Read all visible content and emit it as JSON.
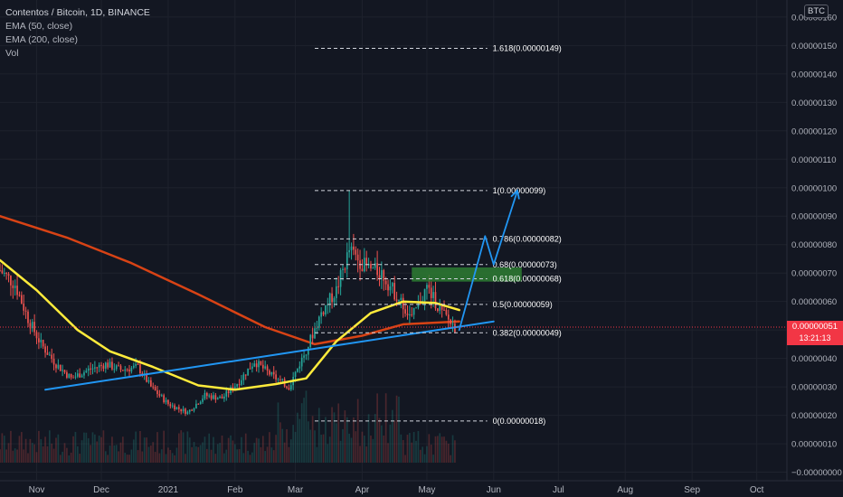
{
  "legend": {
    "symbol": "Contentos / Bitcoin, 1D, BINANCE",
    "ema50": "EMA (50, close)",
    "ema200": "EMA (200, close)",
    "vol": "Vol"
  },
  "axis_badge": "BTC",
  "last_price": {
    "value": "0.00000051",
    "countdown": "13:21:13"
  },
  "chart_data": {
    "type": "candlestick",
    "title": "Contentos / Bitcoin, 1D, BINANCE",
    "x_tick_labels": [
      "Nov",
      "Dec",
      "2021",
      "Feb",
      "Mar",
      "Apr",
      "May",
      "Jun",
      "Jul",
      "Aug",
      "Sep",
      "Oct"
    ],
    "y_tick_labels": [
      "0.00000160",
      "0.00000150",
      "0.00000140",
      "0.00000130",
      "0.00000120",
      "0.00000110",
      "0.00000100",
      "0.00000090",
      "0.00000080",
      "0.00000070",
      "0.00000060",
      "0.00000050",
      "0.00000040",
      "0.00000030",
      "0.00000020",
      "0.00000010",
      "−0.00000000"
    ],
    "y_ticks": [
      1.6e-06,
      1.5e-06,
      1.4e-06,
      1.3e-06,
      1.2e-06,
      1.1e-06,
      1e-06,
      9e-07,
      8e-07,
      7e-07,
      6e-07,
      5e-07,
      4e-07,
      3e-07,
      2e-07,
      1e-07,
      0
    ],
    "x_range": [
      "2020-10-15",
      "2021-10-15"
    ],
    "y_range": [
      -3e-08,
      1.66e-06
    ],
    "price_path": [
      [
        "2020-10-15",
        7.1e-07
      ],
      [
        "2020-10-22",
        6.6e-07
      ],
      [
        "2020-10-28",
        5.4e-07
      ],
      [
        "2020-11-03",
        4.5e-07
      ],
      [
        "2020-11-10",
        3.8e-07
      ],
      [
        "2020-11-17",
        3.3e-07
      ],
      [
        "2020-11-25",
        3.6e-07
      ],
      [
        "2020-12-03",
        3.8e-07
      ],
      [
        "2020-12-10",
        3.6e-07
      ],
      [
        "2020-12-18",
        3.7e-07
      ],
      [
        "2020-12-24",
        3e-07
      ],
      [
        "2021-01-01",
        2.4e-07
      ],
      [
        "2021-01-10",
        2.1e-07
      ],
      [
        "2021-01-18",
        2.7e-07
      ],
      [
        "2021-01-26",
        2.6e-07
      ],
      [
        "2021-02-03",
        3.2e-07
      ],
      [
        "2021-02-10",
        3.9e-07
      ],
      [
        "2021-02-18",
        3.4e-07
      ],
      [
        "2021-02-26",
        3e-07
      ],
      [
        "2021-03-06",
        4.3e-07
      ],
      [
        "2021-03-13",
        5.6e-07
      ],
      [
        "2021-03-20",
        6.4e-07
      ],
      [
        "2021-03-26",
        7.8e-07
      ],
      [
        "2021-04-03",
        7.2e-07
      ],
      [
        "2021-04-10",
        7e-07
      ],
      [
        "2021-04-17",
        6.2e-07
      ],
      [
        "2021-04-24",
        5.4e-07
      ],
      [
        "2021-05-01",
        6.5e-07
      ],
      [
        "2021-05-08",
        5.6e-07
      ],
      [
        "2021-05-14",
        5.1e-07
      ]
    ],
    "spike_high": [
      "2021-03-26",
      9.9e-07
    ],
    "ema50": [
      [
        "2020-10-15",
        7.45e-07
      ],
      [
        "2020-11-01",
        6.4e-07
      ],
      [
        "2020-11-20",
        5e-07
      ],
      [
        "2020-12-05",
        4.25e-07
      ],
      [
        "2020-12-25",
        3.7e-07
      ],
      [
        "2021-01-15",
        3.05e-07
      ],
      [
        "2021-02-01",
        2.9e-07
      ],
      [
        "2021-02-20",
        3.1e-07
      ],
      [
        "2021-03-06",
        3.3e-07
      ],
      [
        "2021-03-20",
        4.6e-07
      ],
      [
        "2021-04-05",
        5.6e-07
      ],
      [
        "2021-04-20",
        6e-07
      ],
      [
        "2021-05-05",
        5.95e-07
      ],
      [
        "2021-05-16",
        5.7e-07
      ]
    ],
    "ema200": [
      [
        "2020-10-15",
        9e-07
      ],
      [
        "2020-11-15",
        8.25e-07
      ],
      [
        "2020-12-15",
        7.35e-07
      ],
      [
        "2021-01-15",
        6.25e-07
      ],
      [
        "2021-02-15",
        5.1e-07
      ],
      [
        "2021-03-10",
        4.5e-07
      ],
      [
        "2021-04-01",
        4.8e-07
      ],
      [
        "2021-04-20",
        5.2e-07
      ],
      [
        "2021-05-16",
        5.3e-07
      ]
    ],
    "trendline": [
      [
        "2020-11-05",
        2.9e-07
      ],
      [
        "2021-06-01",
        5.3e-07
      ]
    ],
    "fib_levels": [
      {
        "label": "1.618(0.00000149)",
        "value": 1.49e-06
      },
      {
        "label": "1(0.00000099)",
        "value": 9.9e-07
      },
      {
        "label": "0.786(0.00000082)",
        "value": 8.2e-07
      },
      {
        "label": "0.68(0.00000073)",
        "value": 7.3e-07
      },
      {
        "label": "0.618(0.00000068)",
        "value": 6.8e-07
      },
      {
        "label": "0.5(0.00000059)",
        "value": 5.9e-07
      },
      {
        "label": "0.382(0.00000049)",
        "value": 4.9e-07
      },
      {
        "label": "0(0.00000018)",
        "value": 1.8e-07
      }
    ],
    "fib_start": "2021-03-10",
    "fib_end": "2021-05-29",
    "zone": {
      "from": 6.7e-07,
      "to": 7.2e-07,
      "start": "2021-04-24",
      "end": "2021-06-14"
    },
    "projection": [
      [
        "2021-05-16",
        5e-07
      ],
      [
        "2021-05-28",
        8.3e-07
      ],
      [
        "2021-06-01",
        7.3e-07
      ],
      [
        "2021-06-12",
        9.9e-07
      ]
    ],
    "last_price": 5.1e-07,
    "colors": {
      "up": "#26a69a",
      "down": "#ef5350",
      "ema50": "#ffeb3b",
      "ema200": "#d84315",
      "trend": "#2196f3",
      "zone": "#2e7d32",
      "price": "#f23645"
    }
  }
}
